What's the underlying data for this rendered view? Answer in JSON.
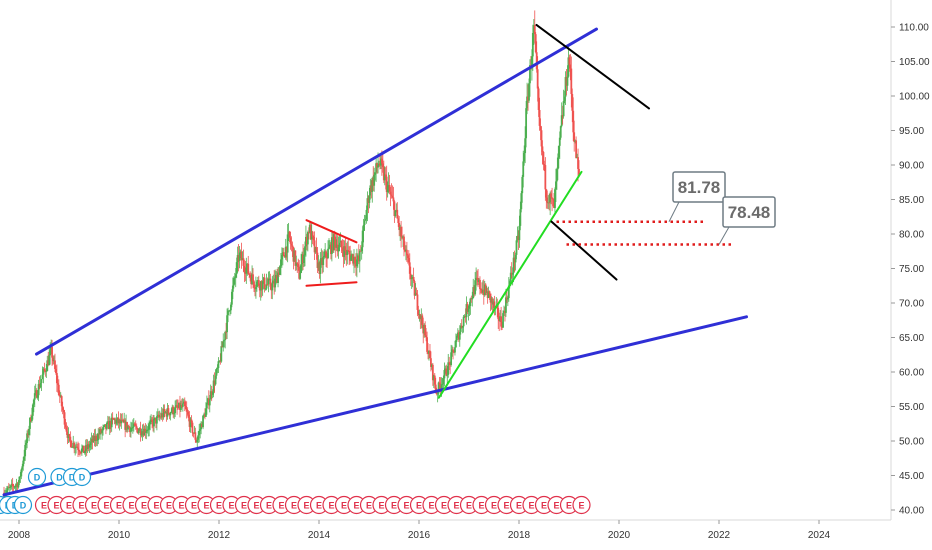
{
  "chart_data": {
    "type": "candlestick",
    "title": "",
    "xlabel": "",
    "ylabel": "",
    "x_axis": {
      "range": [
        2007.7,
        2025.5
      ],
      "ticks": [
        {
          "value": 2008,
          "label": "2008"
        },
        {
          "value": 2010,
          "label": "2010"
        },
        {
          "value": 2012,
          "label": "2012"
        },
        {
          "value": 2014,
          "label": "2014"
        },
        {
          "value": 2016,
          "label": "2016"
        },
        {
          "value": 2018,
          "label": "2018"
        },
        {
          "value": 2020,
          "label": "2020"
        },
        {
          "value": 2022,
          "label": "2022"
        },
        {
          "value": 2024,
          "label": "2024"
        }
      ]
    },
    "y_axis": {
      "side": "right",
      "range": [
        38.5,
        112
      ],
      "ticks": [
        {
          "value": 40,
          "label": "40.00"
        },
        {
          "value": 45,
          "label": "45.00"
        },
        {
          "value": 50,
          "label": "50.00"
        },
        {
          "value": 55,
          "label": "55.00"
        },
        {
          "value": 60,
          "label": "60.00"
        },
        {
          "value": 65,
          "label": "65.00"
        },
        {
          "value": 70,
          "label": "70.00"
        },
        {
          "value": 75,
          "label": "75.00"
        },
        {
          "value": 80,
          "label": "80.00"
        },
        {
          "value": 85,
          "label": "85.00"
        },
        {
          "value": 90,
          "label": "90.00"
        },
        {
          "value": 95,
          "label": "95.00"
        },
        {
          "value": 100,
          "label": "100.00"
        },
        {
          "value": 105,
          "label": "105.00"
        },
        {
          "value": 110,
          "label": "110.00"
        }
      ]
    },
    "grid": false,
    "colors": {
      "up": "#4caf50",
      "down": "#ef5350"
    },
    "price_path": [
      [
        2007.7,
        42.5
      ],
      [
        2008.0,
        44.0
      ],
      [
        2008.3,
        56.0
      ],
      [
        2008.65,
        63.0
      ],
      [
        2008.8,
        57.0
      ],
      [
        2009.0,
        50.0
      ],
      [
        2009.3,
        48.5
      ],
      [
        2009.6,
        51.0
      ],
      [
        2009.9,
        53.0
      ],
      [
        2010.2,
        52.0
      ],
      [
        2010.5,
        51.5
      ],
      [
        2010.9,
        54.0
      ],
      [
        2011.3,
        55.0
      ],
      [
        2011.55,
        50.0
      ],
      [
        2011.8,
        56.0
      ],
      [
        2012.0,
        61.0
      ],
      [
        2012.4,
        77.0
      ],
      [
        2012.7,
        73.0
      ],
      [
        2013.1,
        72.5
      ],
      [
        2013.4,
        79.5
      ],
      [
        2013.6,
        74.0
      ],
      [
        2013.8,
        81.0
      ],
      [
        2014.0,
        75.0
      ],
      [
        2014.3,
        79.0
      ],
      [
        2014.6,
        77.0
      ],
      [
        2014.8,
        76.0
      ],
      [
        2015.0,
        86.0
      ],
      [
        2015.2,
        90.5
      ],
      [
        2015.5,
        84.0
      ],
      [
        2015.7,
        78.0
      ],
      [
        2015.9,
        72.0
      ],
      [
        2016.1,
        66.0
      ],
      [
        2016.35,
        57.0
      ],
      [
        2016.6,
        61.0
      ],
      [
        2016.9,
        68.0
      ],
      [
        2017.15,
        73.0
      ],
      [
        2017.4,
        71.0
      ],
      [
        2017.65,
        67.0
      ],
      [
        2017.9,
        76.0
      ],
      [
        2018.0,
        80.0
      ],
      [
        2018.15,
        98.0
      ],
      [
        2018.3,
        110.0
      ],
      [
        2018.4,
        96.0
      ],
      [
        2018.55,
        86.0
      ],
      [
        2018.7,
        84.0
      ],
      [
        2018.85,
        96.0
      ],
      [
        2019.0,
        106.0
      ],
      [
        2019.1,
        94.0
      ],
      [
        2019.2,
        88.0
      ]
    ],
    "drawings": [
      {
        "name": "upper-channel-line",
        "color": "#2f2fd6",
        "width": 3,
        "points": [
          [
            2008.35,
            62.6
          ],
          [
            2019.55,
            109.7
          ]
        ]
      },
      {
        "name": "lower-channel-line",
        "color": "#2f2fd6",
        "width": 3,
        "points": [
          [
            2007.7,
            42.2
          ],
          [
            2022.55,
            68.0
          ]
        ]
      },
      {
        "name": "green-support-line",
        "color": "#22dd22",
        "width": 2,
        "points": [
          [
            2016.4,
            56.3
          ],
          [
            2019.25,
            89.0
          ]
        ]
      },
      {
        "name": "black-upper-line",
        "color": "#000000",
        "width": 2,
        "points": [
          [
            2018.35,
            110.3
          ],
          [
            2020.6,
            98.2
          ]
        ]
      },
      {
        "name": "black-lower-line",
        "color": "#000000",
        "width": 2,
        "points": [
          [
            2018.65,
            81.8
          ],
          [
            2019.95,
            73.4
          ]
        ]
      },
      {
        "name": "red-triangle-top",
        "color": "#ee1c1c",
        "width": 2,
        "points": [
          [
            2013.75,
            82.0
          ],
          [
            2014.75,
            78.8
          ]
        ]
      },
      {
        "name": "red-triangle-bottom",
        "color": "#ee1c1c",
        "width": 2,
        "points": [
          [
            2013.75,
            72.5
          ],
          [
            2014.75,
            73.0
          ]
        ]
      }
    ],
    "levels": [
      {
        "value": 81.78,
        "label": "81.78",
        "x_start": 2018.75,
        "x_end": 2021.75,
        "color": "#e01b1b"
      },
      {
        "value": 78.48,
        "label": "78.48",
        "x_start": 2018.95,
        "x_end": 2022.25,
        "color": "#e01b1b"
      }
    ],
    "events": {
      "dividend_label": "D",
      "earnings_label": "E",
      "dividend_color": "#1e9ad6",
      "earnings_color": "#e0314b",
      "dividends": [
        2007.72,
        2007.86,
        2008.02,
        2008.16,
        2008.32,
        2008.6,
        2009.05,
        2009.3,
        2009.5
      ],
      "earnings": [
        2008.5,
        2008.75,
        2009.0,
        2009.25,
        2009.5,
        2009.75,
        2010.0,
        2010.25,
        2010.5,
        2010.75,
        2011.0,
        2011.25,
        2011.5,
        2011.75,
        2012.0,
        2012.25,
        2012.5,
        2012.75,
        2013.0,
        2013.25,
        2013.5,
        2013.75,
        2014.0,
        2014.25,
        2014.5,
        2014.75,
        2015.0,
        2015.25,
        2015.5,
        2015.75,
        2016.0,
        2016.25,
        2016.5,
        2016.75,
        2017.0,
        2017.25,
        2017.5,
        2017.75,
        2018.0,
        2018.25,
        2018.5,
        2018.75,
        2019.0,
        2019.25
      ]
    }
  }
}
